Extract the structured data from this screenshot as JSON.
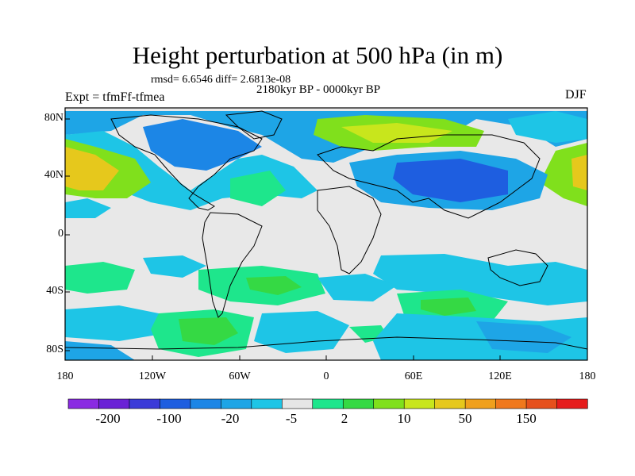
{
  "title": "Height perturbation at 500 hPa (in m)",
  "stats": "rmsd= 6.6546 diff= 2.6813e-08",
  "period": "2180kyr BP - 0000kyr BP",
  "experiment": "Expt = tfmFf-tfmea",
  "season": "DJF",
  "lat_labels": [
    "80N",
    "40N",
    "0",
    "40S",
    "80S"
  ],
  "lon_labels": [
    "180",
    "120W",
    "60W",
    "0",
    "60E",
    "120E",
    "180"
  ],
  "colorbar": {
    "labels": [
      "-200",
      "-100",
      "-20",
      "-5",
      "2",
      "10",
      "50",
      "150"
    ],
    "colors": [
      "#8a2be2",
      "#6a22d6",
      "#3b3bd8",
      "#1e5ee0",
      "#1c86e6",
      "#1ea5e6",
      "#1ec5e6",
      "#e6e6e6",
      "#1ee68c",
      "#35d944",
      "#80e01c",
      "#c8e61c",
      "#e6c81c",
      "#f0a01c",
      "#f0781c",
      "#e6501c",
      "#e61c1c"
    ]
  },
  "field_colors": {
    "background": "#e8e8e8",
    "neg_weak": "#1ec5e6",
    "neg_mid": "#1ea5e6",
    "neg_strong": "#1c86e6",
    "neg_deep": "#1e5ee0",
    "pos_weak": "#1ee68c",
    "pos_mid": "#35d944",
    "pos_strong": "#80e01c",
    "pos_deep": "#c8e61c",
    "pos_max": "#e6c81c"
  }
}
